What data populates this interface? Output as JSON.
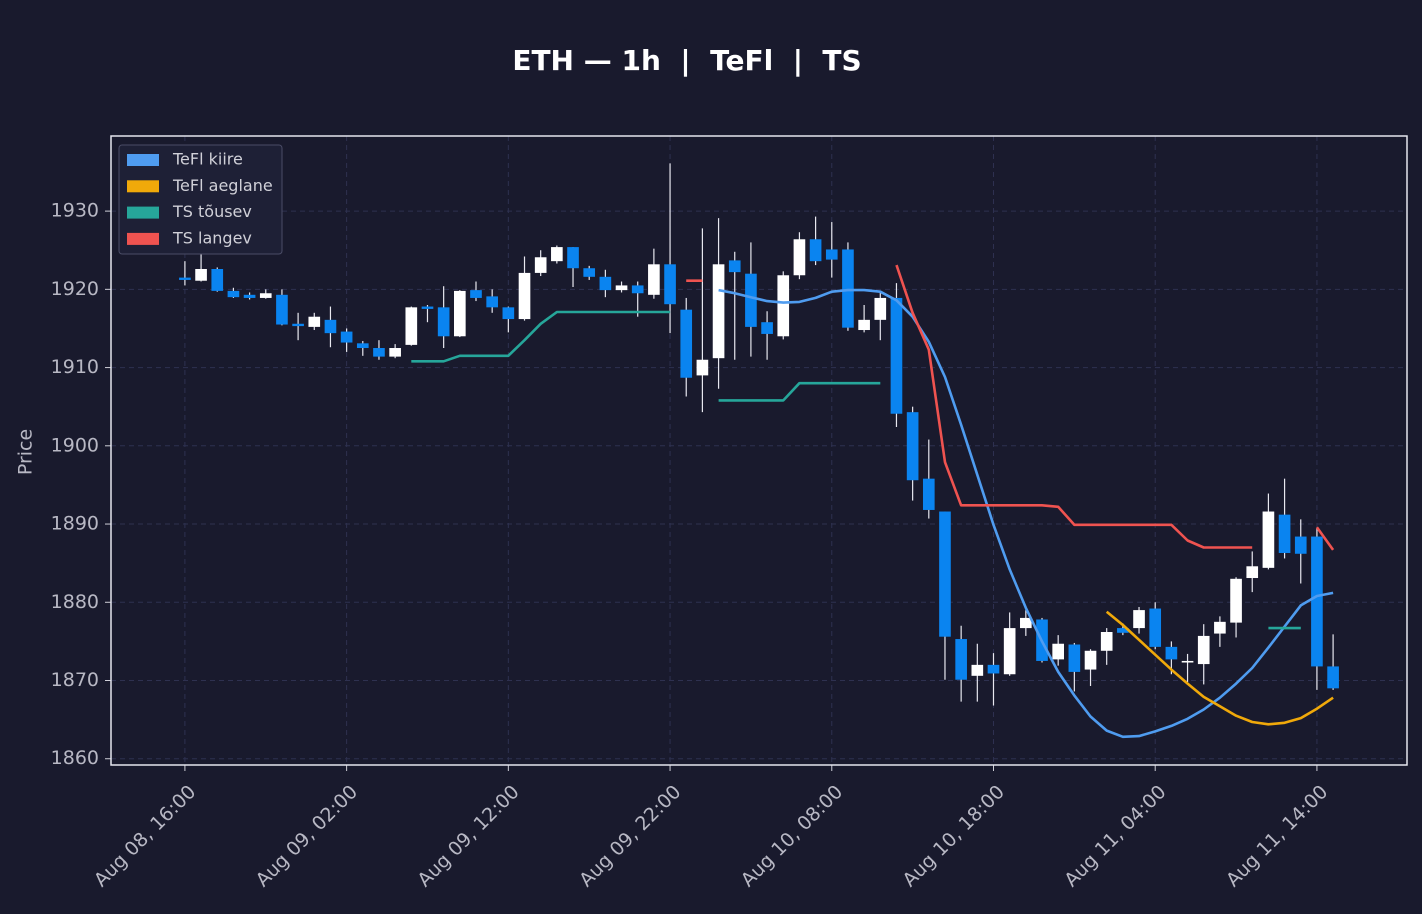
{
  "chart_data": {
    "type": "candlestick",
    "title": "ETH — 1h  |  TeFl  |  TS",
    "y_label": "Price",
    "x": [
      "Aug 08, 16:00",
      "Aug 08, 17:00",
      "Aug 08, 18:00",
      "Aug 08, 19:00",
      "Aug 08, 20:00",
      "Aug 08, 21:00",
      "Aug 08, 22:00",
      "Aug 08, 23:00",
      "Aug 09, 00:00",
      "Aug 09, 01:00",
      "Aug 09, 02:00",
      "Aug 09, 03:00",
      "Aug 09, 04:00",
      "Aug 09, 05:00",
      "Aug 09, 06:00",
      "Aug 09, 07:00",
      "Aug 09, 08:00",
      "Aug 09, 09:00",
      "Aug 09, 10:00",
      "Aug 09, 11:00",
      "Aug 09, 12:00",
      "Aug 09, 13:00",
      "Aug 09, 14:00",
      "Aug 09, 15:00",
      "Aug 09, 16:00",
      "Aug 09, 17:00",
      "Aug 09, 18:00",
      "Aug 09, 19:00",
      "Aug 09, 20:00",
      "Aug 09, 21:00",
      "Aug 09, 22:00",
      "Aug 09, 23:00",
      "Aug 10, 00:00",
      "Aug 10, 01:00",
      "Aug 10, 02:00",
      "Aug 10, 03:00",
      "Aug 10, 04:00",
      "Aug 10, 05:00",
      "Aug 10, 06:00",
      "Aug 10, 07:00",
      "Aug 10, 08:00",
      "Aug 10, 09:00",
      "Aug 10, 10:00",
      "Aug 10, 11:00",
      "Aug 10, 12:00",
      "Aug 10, 13:00",
      "Aug 10, 14:00",
      "Aug 10, 15:00",
      "Aug 10, 16:00",
      "Aug 10, 17:00",
      "Aug 10, 18:00",
      "Aug 10, 19:00",
      "Aug 10, 20:00",
      "Aug 10, 21:00",
      "Aug 10, 22:00",
      "Aug 10, 23:00",
      "Aug 11, 00:00",
      "Aug 11, 01:00",
      "Aug 11, 02:00",
      "Aug 11, 03:00",
      "Aug 11, 04:00",
      "Aug 11, 05:00",
      "Aug 11, 06:00",
      "Aug 11, 07:00",
      "Aug 11, 08:00",
      "Aug 11, 09:00",
      "Aug 11, 10:00",
      "Aug 11, 11:00",
      "Aug 11, 12:00",
      "Aug 11, 13:00",
      "Aug 11, 14:00",
      "Aug 11, 15:00"
    ],
    "open": [
      1921.5,
      1921.1,
      1922.6,
      1919.8,
      1919.3,
      1918.9,
      1919.3,
      1915.6,
      1915.2,
      1916.1,
      1914.6,
      1913.1,
      1912.5,
      1911.4,
      1912.9,
      1917.8,
      1917.7,
      1914.0,
      1919.9,
      1919.1,
      1917.7,
      1916.2,
      1922.1,
      1923.6,
      1925.4,
      1922.7,
      1921.6,
      1919.9,
      1920.5,
      1919.3,
      1923.2,
      1917.4,
      1909.0,
      1911.2,
      1923.7,
      1922.0,
      1915.8,
      1914.0,
      1921.8,
      1926.4,
      1925.1,
      1925.1,
      1914.8,
      1916.1,
      1918.9,
      1904.3,
      1895.8,
      1891.6,
      1875.3,
      1870.6,
      1872.0,
      1870.8,
      1876.7,
      1877.8,
      1872.7,
      1874.6,
      1871.4,
      1873.8,
      1876.7,
      1876.7,
      1879.2,
      1874.3,
      1872.3,
      1872.1,
      1876.0,
      1877.4,
      1883.1,
      1884.4,
      1891.2,
      1888.4,
      1888.4,
      1871.8
    ],
    "high": [
      1923.6,
      1924.5,
      1922.8,
      1920.2,
      1919.6,
      1920.0,
      1920.0,
      1917.0,
      1917.0,
      1917.8,
      1915.0,
      1913.4,
      1913.5,
      1913.0,
      1917.8,
      1918.0,
      1920.4,
      1919.9,
      1921.0,
      1920.0,
      1917.8,
      1924.2,
      1925.0,
      1925.6,
      1925.4,
      1923.0,
      1922.5,
      1921.0,
      1921.0,
      1925.2,
      1936.1,
      1918.9,
      1927.8,
      1929.1,
      1924.8,
      1926.0,
      1917.2,
      1922.3,
      1927.3,
      1929.3,
      1928.6,
      1926.0,
      1918.0,
      1919.7,
      1920.8,
      1905.0,
      1900.8,
      1891.6,
      1877.0,
      1874.7,
      1873.5,
      1878.7,
      1879.0,
      1878.0,
      1875.8,
      1874.8,
      1874.0,
      1876.7,
      1877.3,
      1879.4,
      1880.0,
      1875.0,
      1873.4,
      1877.2,
      1878.2,
      1883.2,
      1886.5,
      1893.9,
      1895.8,
      1890.6,
      1889.5,
      1875.9
    ],
    "low": [
      1920.5,
      1921.0,
      1919.7,
      1918.9,
      1918.7,
      1918.8,
      1915.4,
      1913.5,
      1914.8,
      1912.6,
      1912.0,
      1911.5,
      1911.0,
      1911.2,
      1912.8,
      1915.8,
      1912.5,
      1913.9,
      1918.5,
      1917.0,
      1914.5,
      1916.0,
      1921.7,
      1923.3,
      1920.3,
      1921.2,
      1919.0,
      1919.6,
      1916.5,
      1918.8,
      1914.4,
      1906.3,
      1904.3,
      1907.3,
      1911.0,
      1911.4,
      1911.0,
      1913.6,
      1921.3,
      1923.1,
      1921.5,
      1914.7,
      1914.5,
      1913.5,
      1902.4,
      1893.0,
      1890.7,
      1870.1,
      1867.3,
      1867.3,
      1866.8,
      1870.6,
      1875.7,
      1872.3,
      1871.9,
      1868.6,
      1869.3,
      1872.0,
      1875.8,
      1876.0,
      1874.0,
      1870.8,
      1869.8,
      1869.5,
      1874.3,
      1875.5,
      1881.3,
      1884.2,
      1885.6,
      1882.4,
      1868.8,
      1868.8
    ],
    "close": [
      1921.2,
      1922.6,
      1919.8,
      1919.0,
      1918.9,
      1919.5,
      1915.5,
      1915.3,
      1916.5,
      1914.4,
      1913.2,
      1912.5,
      1911.4,
      1912.5,
      1917.7,
      1917.5,
      1914.0,
      1919.8,
      1918.9,
      1917.7,
      1916.2,
      1922.1,
      1924.1,
      1925.4,
      1922.7,
      1921.6,
      1919.9,
      1920.5,
      1919.5,
      1923.2,
      1918.1,
      1908.7,
      1911.0,
      1923.2,
      1922.2,
      1915.2,
      1914.3,
      1921.8,
      1926.4,
      1923.6,
      1923.8,
      1915.1,
      1916.1,
      1918.9,
      1904.1,
      1895.6,
      1891.8,
      1875.6,
      1870.1,
      1872.0,
      1870.9,
      1876.7,
      1878.0,
      1872.5,
      1874.7,
      1871.1,
      1873.8,
      1876.2,
      1876.1,
      1879.0,
      1874.3,
      1872.7,
      1872.5,
      1875.7,
      1877.5,
      1883.0,
      1884.6,
      1891.6,
      1886.3,
      1886.2,
      1871.8,
      1869.0
    ],
    "up_color": "#ffffff",
    "down_color": "#0a84f0",
    "series": [
      {
        "name": "TeFl kiire",
        "color": "#4f9cf0",
        "values": [
          null,
          null,
          null,
          null,
          null,
          null,
          null,
          null,
          null,
          null,
          null,
          null,
          null,
          null,
          null,
          null,
          null,
          null,
          null,
          null,
          null,
          null,
          null,
          null,
          null,
          null,
          null,
          null,
          null,
          null,
          null,
          null,
          null,
          1919.9,
          1919.5,
          1919.0,
          1918.5,
          1918.3,
          1918.4,
          1918.9,
          1919.7,
          1919.9,
          1919.9,
          1919.7,
          1918.6,
          1916.5,
          1913.3,
          1908.8,
          1902.7,
          1896.3,
          1889.9,
          1884.2,
          1879.3,
          1875.0,
          1871.1,
          1868.1,
          1865.4,
          1863.6,
          1862.8,
          1862.9,
          1863.5,
          1864.2,
          1865.1,
          1866.3,
          1867.8,
          1869.6,
          1871.6,
          1874.2,
          1876.9,
          1879.6,
          1880.8,
          1881.2
        ]
      },
      {
        "name": "TeFl aeglane",
        "color": "#f0a90a",
        "values": [
          null,
          null,
          null,
          null,
          null,
          null,
          null,
          null,
          null,
          null,
          null,
          null,
          null,
          null,
          null,
          null,
          null,
          null,
          null,
          null,
          null,
          null,
          null,
          null,
          null,
          null,
          null,
          null,
          null,
          null,
          null,
          null,
          null,
          null,
          null,
          null,
          null,
          null,
          null,
          null,
          null,
          null,
          null,
          null,
          null,
          null,
          null,
          null,
          null,
          null,
          null,
          null,
          null,
          null,
          null,
          null,
          null,
          1878.8,
          1877.1,
          1875.2,
          1873.3,
          1871.4,
          1869.6,
          1867.9,
          1866.7,
          1865.5,
          1864.7,
          1864.4,
          1864.6,
          1865.2,
          1866.4,
          1867.8
        ]
      },
      {
        "name": "TS tõusev",
        "color": "#26a69a",
        "values": [
          null,
          null,
          null,
          null,
          null,
          null,
          null,
          null,
          null,
          null,
          null,
          null,
          null,
          null,
          1910.8,
          1910.8,
          1910.8,
          1911.5,
          1911.5,
          1911.5,
          1911.5,
          1913.5,
          1915.6,
          1917.1,
          1917.1,
          1917.1,
          1917.1,
          1917.1,
          1917.1,
          1917.1,
          1917.1,
          null,
          null,
          1905.8,
          1905.8,
          1905.8,
          1905.8,
          1905.8,
          1908.0,
          1908.0,
          1908.0,
          1908.0,
          1908.0,
          1908.0,
          null,
          null,
          null,
          null,
          null,
          null,
          null,
          null,
          null,
          null,
          null,
          null,
          null,
          null,
          null,
          null,
          null,
          null,
          null,
          null,
          null,
          null,
          null,
          1876.7,
          1876.7,
          1876.7,
          null,
          null
        ]
      },
      {
        "name": "TS langev",
        "color": "#ef5350",
        "values": [
          null,
          null,
          null,
          null,
          null,
          null,
          null,
          null,
          null,
          null,
          null,
          null,
          null,
          null,
          null,
          null,
          null,
          null,
          null,
          null,
          null,
          null,
          null,
          null,
          null,
          null,
          null,
          null,
          null,
          null,
          null,
          1921.1,
          1921.1,
          null,
          null,
          null,
          null,
          null,
          null,
          null,
          null,
          null,
          null,
          null,
          1923.1,
          1917.0,
          1912.3,
          1897.9,
          1892.4,
          1892.4,
          1892.4,
          1892.4,
          1892.4,
          1892.4,
          1892.2,
          1889.9,
          1889.9,
          1889.9,
          1889.9,
          1889.9,
          1889.9,
          1889.9,
          1887.9,
          1887.0,
          1887.0,
          1887.0,
          1887.0,
          null,
          null,
          null,
          1889.6,
          1886.7
        ]
      }
    ],
    "xticks": [
      "Aug 08, 16:00",
      "Aug 09, 02:00",
      "Aug 09, 12:00",
      "Aug 09, 22:00",
      "Aug 10, 08:00",
      "Aug 10, 18:00",
      "Aug 11, 04:00",
      "Aug 11, 14:00"
    ],
    "ylim": [
      1859.2,
      1939.6
    ],
    "yticks": [
      1860,
      1870,
      1880,
      1890,
      1900,
      1910,
      1920,
      1930
    ],
    "grid": true,
    "legend": "upper left"
  }
}
